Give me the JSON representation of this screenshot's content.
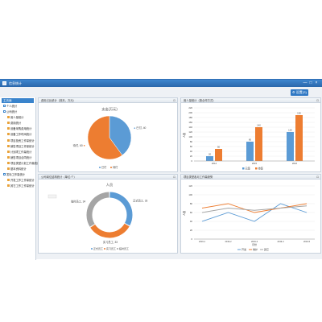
{
  "window": {
    "title": "信息统计",
    "min_glyph": "—",
    "max_glyph": "□",
    "close_glyph": "×"
  },
  "toolbar": {
    "settings_label": "设置(S)",
    "settings_icon": "gear-icon"
  },
  "sidebar": {
    "header": "主页面",
    "items": [
      {
        "label": "个人统计",
        "level": 1
      },
      {
        "label": "公司统计",
        "level": 1
      },
      {
        "label": "用人量统计",
        "level": 2
      },
      {
        "label": "费用统计",
        "level": 2
      },
      {
        "label": "设备采购费用统计",
        "level": 2
      },
      {
        "label": "设备工作时间统计",
        "level": 2
      },
      {
        "label": "项目投资工作量统计",
        "level": 2
      },
      {
        "label": "销售项目工作量统计",
        "level": 2
      },
      {
        "label": "计划项工作量统计",
        "level": 2
      },
      {
        "label": "销售项目合同统计",
        "level": 2
      },
      {
        "label": "项目类型计划工作量统计",
        "level": 2
      },
      {
        "label": "基本资料统计",
        "level": 2
      },
      {
        "label": "发标工作量统计",
        "level": 1
      },
      {
        "label": "开发工作工作量统计",
        "level": 2
      },
      {
        "label": "其它工作工作量统计",
        "level": 2
      }
    ]
  },
  "panels": {
    "pie": {
      "title": "费用占比统计（按月，万元）",
      "ctrl": "⊡"
    },
    "bar": {
      "title": "用人量统计（按合作方式）",
      "ctrl": "⊡"
    },
    "donut": {
      "title": "公司岗位结构统计（单位:个）",
      "ctrl": "⊡"
    },
    "line": {
      "title": "项目类型各月工作量趋势",
      "ctrl": "⊡"
    }
  },
  "pie_chart": {
    "title": "支出(万元)",
    "slices": [
      {
        "name": "已付",
        "value": 40,
        "color": "#5b9bd5",
        "label": "已付, 40"
      },
      {
        "name": "待付",
        "value": 60,
        "color": "#ed7d31",
        "label": "待付, 60"
      }
    ],
    "legend": [
      "已付",
      "待付"
    ]
  },
  "bar_chart": {
    "ylabel": "人数",
    "categories": [
      "2014",
      "2015",
      "2016"
    ],
    "series": [
      {
        "name": "已签",
        "color": "#5b9bd5",
        "values": [
          20,
          80,
          120
        ]
      },
      {
        "name": "待签",
        "color": "#ed7d31",
        "values": [
          50,
          140,
          190
        ]
      }
    ],
    "yticks": [
      "0",
      "20",
      "40",
      "60",
      "80",
      "100",
      "120",
      "140",
      "160",
      "180",
      "200",
      "220"
    ],
    "ylim": [
      0,
      220
    ],
    "legend": [
      "已签",
      "待签"
    ]
  },
  "donut_chart": {
    "title": "人员",
    "slices": [
      {
        "name": "正式员工",
        "value": 33,
        "color": "#5b9bd5",
        "label": "正式员工, 33"
      },
      {
        "name": "实习员工",
        "value": 33,
        "color": "#ed7d31",
        "label": "实习员工, 33"
      },
      {
        "name": "临时员工",
        "value": 34,
        "color": "#a5a5a5",
        "label": "临时员工, 34"
      }
    ],
    "legend": [
      "正式员工",
      "实习员工",
      "临时员工"
    ]
  },
  "line_chart": {
    "ylabel": "人数",
    "xlabel": "月份",
    "x": [
      "2019-1",
      "2019-2",
      "2019-3",
      "2019-4",
      "2019-5"
    ],
    "series": [
      {
        "name": "开发",
        "color": "#5b9bd5",
        "values": [
          40,
          60,
          40,
          80,
          60
        ]
      },
      {
        "name": "维护",
        "color": "#ed7d31",
        "values": [
          70,
          80,
          60,
          70,
          80
        ]
      },
      {
        "name": "其它",
        "color": "#a5a5a5",
        "values": [
          60,
          70,
          65,
          70,
          75
        ]
      }
    ],
    "yticks": [
      "0",
      "20",
      "40",
      "60",
      "80",
      "100",
      "120"
    ],
    "ylim": [
      0,
      120
    ],
    "legend": [
      "开发",
      "维护",
      "其它"
    ]
  }
}
